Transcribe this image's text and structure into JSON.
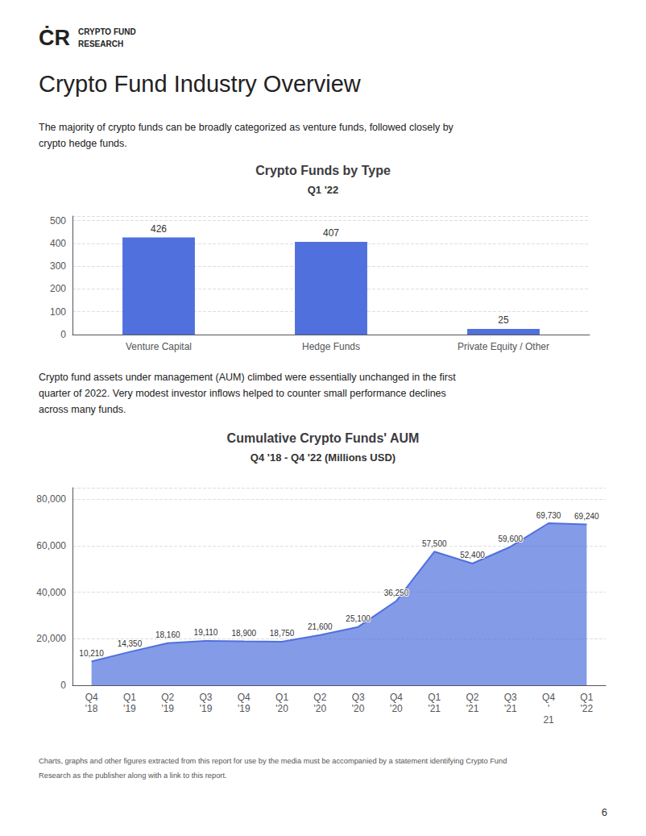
{
  "page_title": "Crypto Fund Industry Overview",
  "logo": [
    "ĊR",
    "CRYPTO FUND",
    "RESEARCH"
  ],
  "paragraphs": [
    "The majority of crypto funds can be broadly categorized as venture funds, followed closely by\ncrypto hedge funds.",
    "Crypto fund assets under management (AUM) climbed were essentially unchanged in the first\nquarter of 2022. Very modest investor inflows helped to counter small performance declines\nacross many funds."
  ],
  "footer": "Charts, graphs and other figures extracted from this report for use by the media must be accompanied by a statement identifying Crypto Fund\nResearch as the publisher along with a link to this report.",
  "page_number": "6",
  "chart_data": [
    {
      "type": "bar",
      "title": "Crypto Funds by Type",
      "subtitle": "Q1 '22",
      "categories": [
        "Venture Capital",
        "Hedge Funds",
        "Private Equity / Other"
      ],
      "values": [
        426,
        407,
        25
      ],
      "ylim": [
        0,
        520
      ],
      "yticks": [
        0,
        100,
        200,
        300,
        400,
        500
      ],
      "grid": true,
      "data_labels": true
    },
    {
      "type": "area",
      "title": "Cumulative Crypto Funds' AUM",
      "subtitle": "Q4 '18 - Q4 '22 (Millions USD)",
      "categories": [
        "Q4\n'18",
        "Q1\n'19",
        "Q2\n'19",
        "Q3\n'19",
        "Q4\n'19",
        "Q1\n'20",
        "Q2\n'20",
        "Q3\n'20",
        "Q4\n'20",
        "Q1\n'21",
        "Q2\n'21",
        "Q3\n'21",
        "Q4\n'",
        "Q1\n'22"
      ],
      "values": [
        10210,
        14350,
        18160,
        19110,
        18900,
        18750,
        21600,
        25100,
        36250,
        57500,
        52400,
        59600,
        69730,
        69240
      ],
      "value_labels": [
        "10,210",
        "14,350",
        "18,160",
        "19,110",
        "18,900",
        "18,750",
        "21,600",
        "25,100",
        "36,250",
        "57,500",
        "52,400",
        "59,600",
        "69,730",
        "69,240"
      ],
      "annotations": [
        {
          "text": "21",
          "index": 12
        }
      ],
      "ylim": [
        0,
        85000
      ],
      "yticks": [
        0,
        {
          "value": 20000,
          "label": "20,000"
        },
        {
          "value": 40000,
          "label": "40,000"
        },
        {
          "value": 60000,
          "label": "60,000"
        },
        {
          "value": 80000,
          "label": "80,000"
        }
      ],
      "grid": true,
      "data_labels": true
    }
  ]
}
